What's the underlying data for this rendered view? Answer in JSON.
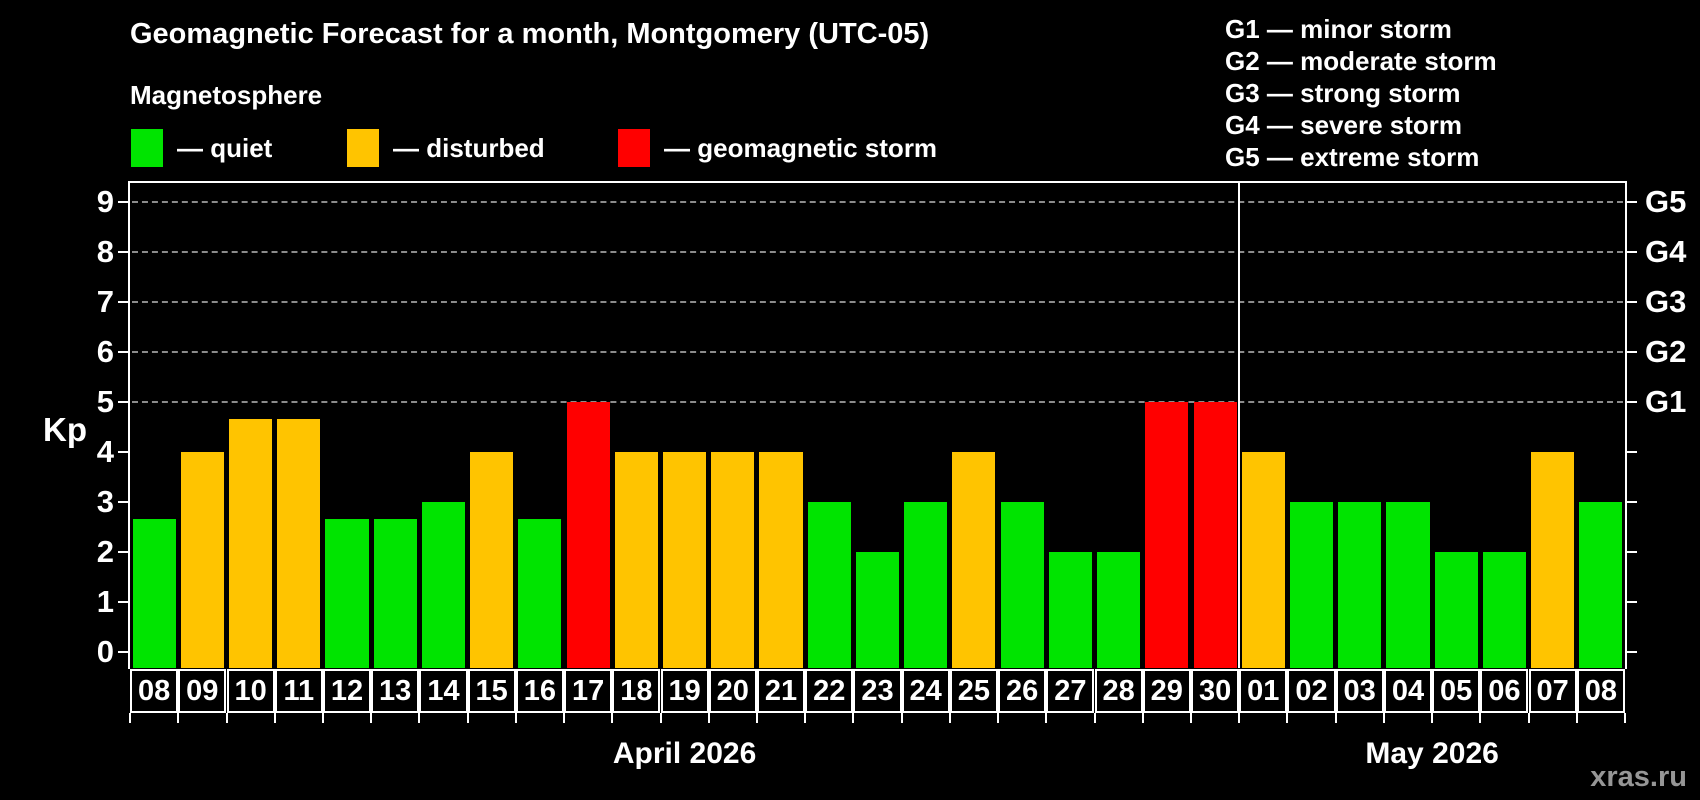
{
  "header": {
    "title": "Geomagnetic Forecast for a month, Montgomery (UTC-05)",
    "subtitle": "Magnetosphere",
    "legend": [
      {
        "key": "quiet",
        "label": "— quiet"
      },
      {
        "key": "disturbed",
        "label": "— disturbed"
      },
      {
        "key": "storm",
        "label": "— geomagnetic storm"
      }
    ],
    "storm_scale": [
      "G1 — minor storm",
      "G2 — moderate storm",
      "G3 — strong storm",
      "G4 — severe storm",
      "G5 — extreme storm"
    ]
  },
  "colors": {
    "quiet": "#00e400",
    "disturbed": "#ffc400",
    "storm": "#ff0000",
    "grid": "#8c8c8c",
    "axis": "#ffffff",
    "watermark": "#969696"
  },
  "chart_data": {
    "type": "bar",
    "title": "Geomagnetic Forecast for a month, Montgomery (UTC-05)",
    "ylabel": "Kp",
    "ylim": [
      0,
      9
    ],
    "y_ticks": [
      0,
      1,
      2,
      3,
      4,
      5,
      6,
      7,
      8,
      9
    ],
    "grid_values": [
      5,
      6,
      7,
      8,
      9
    ],
    "grid_style": "dashed",
    "legend_position": "top-left",
    "right_axis": [
      {
        "value": 5,
        "label": "G1"
      },
      {
        "value": 6,
        "label": "G2"
      },
      {
        "value": 7,
        "label": "G3"
      },
      {
        "value": 8,
        "label": "G4"
      },
      {
        "value": 9,
        "label": "G5"
      }
    ],
    "months": [
      {
        "label": "April 2026",
        "days": 23
      },
      {
        "label": "May 2026",
        "days": 8
      }
    ],
    "bars": [
      {
        "day": "08",
        "value": 2.67,
        "status": "quiet"
      },
      {
        "day": "09",
        "value": 4,
        "status": "disturbed"
      },
      {
        "day": "10",
        "value": 4.67,
        "status": "disturbed"
      },
      {
        "day": "11",
        "value": 4.67,
        "status": "disturbed"
      },
      {
        "day": "12",
        "value": 2.67,
        "status": "quiet"
      },
      {
        "day": "13",
        "value": 2.67,
        "status": "quiet"
      },
      {
        "day": "14",
        "value": 3,
        "status": "quiet"
      },
      {
        "day": "15",
        "value": 4,
        "status": "disturbed"
      },
      {
        "day": "16",
        "value": 2.67,
        "status": "quiet"
      },
      {
        "day": "17",
        "value": 5,
        "status": "storm"
      },
      {
        "day": "18",
        "value": 4,
        "status": "disturbed"
      },
      {
        "day": "19",
        "value": 4,
        "status": "disturbed"
      },
      {
        "day": "20",
        "value": 4,
        "status": "disturbed"
      },
      {
        "day": "21",
        "value": 4,
        "status": "disturbed"
      },
      {
        "day": "22",
        "value": 3,
        "status": "quiet"
      },
      {
        "day": "23",
        "value": 2,
        "status": "quiet"
      },
      {
        "day": "24",
        "value": 3,
        "status": "quiet"
      },
      {
        "day": "25",
        "value": 4,
        "status": "disturbed"
      },
      {
        "day": "26",
        "value": 3,
        "status": "quiet"
      },
      {
        "day": "27",
        "value": 2,
        "status": "quiet"
      },
      {
        "day": "28",
        "value": 2,
        "status": "quiet"
      },
      {
        "day": "29",
        "value": 5,
        "status": "storm"
      },
      {
        "day": "30",
        "value": 5,
        "status": "storm"
      },
      {
        "day": "01",
        "value": 4,
        "status": "disturbed"
      },
      {
        "day": "02",
        "value": 3,
        "status": "quiet"
      },
      {
        "day": "03",
        "value": 3,
        "status": "quiet"
      },
      {
        "day": "04",
        "value": 3,
        "status": "quiet"
      },
      {
        "day": "05",
        "value": 2,
        "status": "quiet"
      },
      {
        "day": "06",
        "value": 2,
        "status": "quiet"
      },
      {
        "day": "07",
        "value": 4,
        "status": "disturbed"
      },
      {
        "day": "08",
        "value": 3,
        "status": "quiet"
      }
    ]
  },
  "footer": {
    "watermark": "xras.ru"
  }
}
